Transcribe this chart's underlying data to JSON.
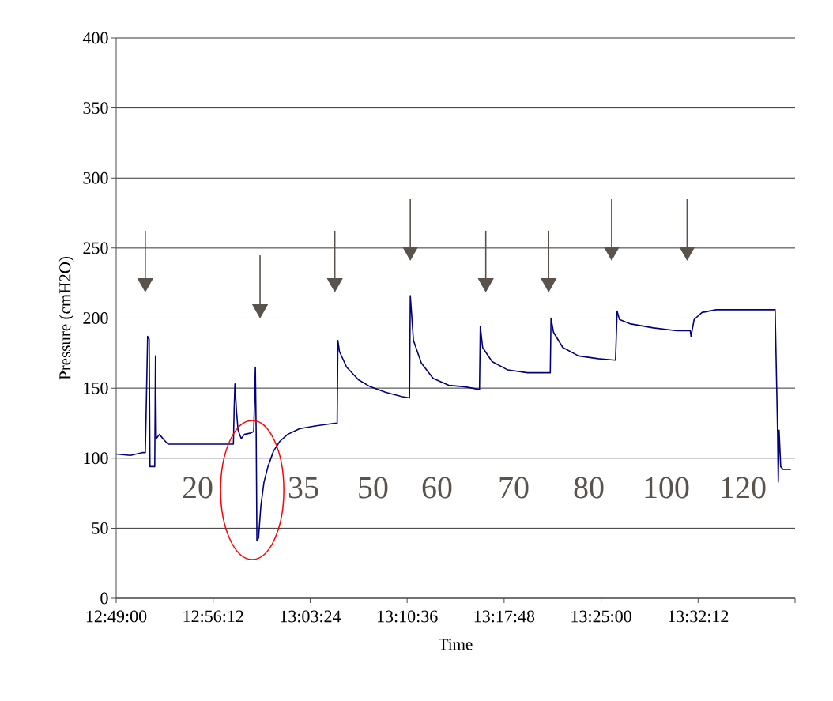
{
  "chart_data": {
    "type": "line",
    "xlabel": "Time",
    "ylabel": "Pressure (cmH2O)",
    "x": [
      12.8167,
      12.8342,
      12.8488,
      12.8527,
      12.8537,
      12.8556,
      12.8575,
      12.8585,
      12.8644,
      12.8653,
      12.8663,
      12.8702,
      12.876,
      12.8809,
      12.9169,
      12.9617,
      12.9626,
      12.9636,
      12.9655,
      12.9675,
      12.9714,
      12.9753,
      12.9831,
      12.9869,
      12.9889,
      12.9899,
      12.9908,
      12.9928,
      12.9957,
      12.9996,
      13.0045,
      13.0113,
      13.0191,
      13.0288,
      13.0434,
      13.0628,
      13.0872,
      13.0901,
      13.091,
      13.093,
      13.1018,
      13.1164,
      13.131,
      13.1504,
      13.1699,
      13.1796,
      13.1806,
      13.1845,
      13.1942,
      13.2088,
      13.2282,
      13.2477,
      13.2662,
      13.2672,
      13.2701,
      13.2818,
      13.3012,
      13.3256,
      13.3538,
      13.3547,
      13.3577,
      13.3693,
      13.3888,
      13.4131,
      13.4345,
      13.4365,
      13.4394,
      13.4521,
      13.4813,
      13.5104,
      13.527,
      13.5279,
      13.5318,
      13.5415,
      13.5591,
      13.5882,
      13.632,
      13.635,
      13.6359,
      13.6369,
      13.6389,
      13.6418,
      13.6515
    ],
    "series": [
      {
        "color": "#000080",
        "values": [
          103,
          102,
          104,
          104,
          131,
          187,
          185,
          94,
          94,
          173,
          114,
          117,
          113,
          110,
          110,
          110,
          134,
          153,
          134,
          120,
          114,
          117,
          118,
          119,
          165,
          119,
          41,
          43,
          66,
          83,
          94,
          105,
          112,
          117,
          121,
          123,
          125,
          125,
          184,
          176,
          165,
          156,
          151,
          147,
          144,
          143,
          216,
          184,
          168,
          157,
          152,
          151,
          149,
          194,
          179,
          169,
          163,
          161,
          161,
          200,
          190,
          179,
          173,
          171,
          170,
          205,
          199,
          196,
          193,
          191,
          191,
          187,
          199,
          204,
          206,
          206,
          206,
          120,
          83,
          120,
          94,
          92,
          92
        ]
      }
    ],
    "xlim": [
      12.81667,
      13.65667
    ],
    "ylim": [
      0,
      400
    ],
    "xticks": [
      {
        "value": 12.81667,
        "label": "12:49:00"
      },
      {
        "value": 12.93667,
        "label": "12:56:12"
      },
      {
        "value": 13.05667,
        "label": "13:03:24"
      },
      {
        "value": 13.17667,
        "label": "13:10:36"
      },
      {
        "value": 13.29667,
        "label": "13:17:48"
      },
      {
        "value": 13.41667,
        "label": "13:25:00"
      },
      {
        "value": 13.53667,
        "label": "13:32:12"
      },
      {
        "value": 13.65667,
        "label": null
      }
    ],
    "yticks": [
      0,
      50,
      100,
      150,
      200,
      250,
      300,
      350,
      400
    ],
    "grid": "y",
    "marker": "none",
    "line_style": "solid",
    "annotations": [
      "20",
      "35",
      "50",
      "60",
      "70",
      "80",
      "100",
      "120"
    ]
  }
}
